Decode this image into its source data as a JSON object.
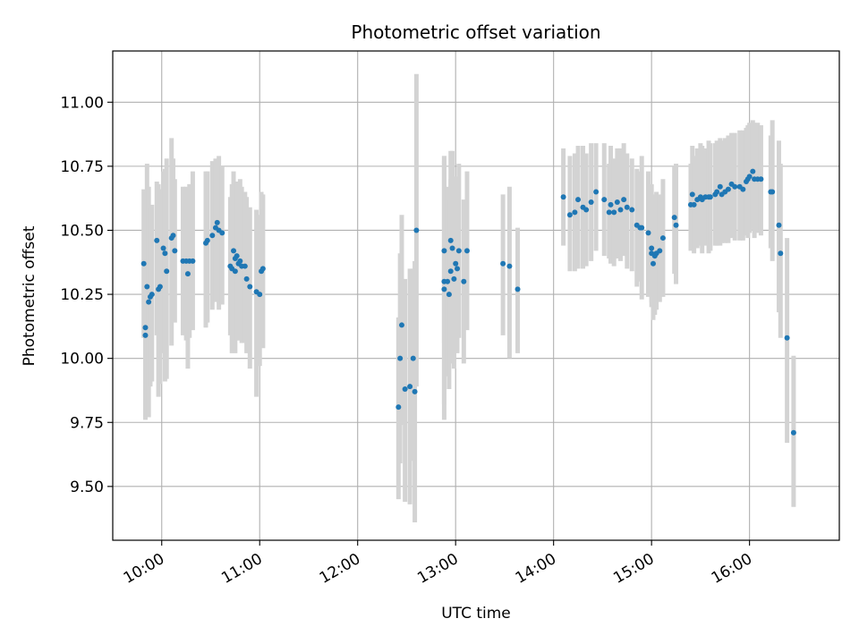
{
  "chart_data": {
    "type": "scatter",
    "title": "Photometric offset variation",
    "xlabel": "UTC time",
    "ylabel": "Photometric offset",
    "xlim": [
      "09:30",
      "16:55"
    ],
    "ylim": [
      9.29,
      11.2
    ],
    "x_ticks": [
      "10:00",
      "11:00",
      "12:00",
      "13:00",
      "14:00",
      "15:00",
      "16:00"
    ],
    "y_ticks": [
      "9.50",
      "9.75",
      "10.00",
      "10.25",
      "10.50",
      "10.75",
      "11.00"
    ],
    "grid": true,
    "colors": {
      "points": "#1f77b4",
      "errorbars": "#d3d3d3",
      "grid": "#b0b0b0"
    },
    "series": [
      {
        "points": [
          [
            "09:49",
            10.37,
            10.08,
            10.66
          ],
          [
            "09:50",
            10.12,
            9.83,
            10.41
          ],
          [
            "09:50",
            10.09,
            9.76,
            10.4
          ],
          [
            "09:51",
            10.28,
            9.8,
            10.76
          ],
          [
            "09:52",
            10.22,
            9.77,
            10.67
          ],
          [
            "09:53",
            10.24,
            9.89,
            10.59
          ],
          [
            "09:54",
            10.25,
            9.91,
            10.6
          ],
          [
            "09:57",
            10.46,
            10.09,
            10.69
          ],
          [
            "09:58",
            10.27,
            9.85,
            10.68
          ],
          [
            "09:59",
            10.28,
            9.9,
            10.66
          ],
          [
            "10:01",
            10.43,
            10.02,
            10.73
          ],
          [
            "10:02",
            10.41,
            9.91,
            10.74
          ],
          [
            "10:03",
            10.34,
            9.92,
            10.78
          ],
          [
            "10:06",
            10.47,
            10.05,
            10.86
          ],
          [
            "10:07",
            10.48,
            10.18,
            10.78
          ],
          [
            "10:08",
            10.42,
            10.14,
            10.7
          ],
          [
            "10:13",
            10.38,
            10.09,
            10.67
          ],
          [
            "10:15",
            10.38,
            10.07,
            10.67
          ],
          [
            "10:16",
            10.33,
            9.96,
            10.66
          ],
          [
            "10:17",
            10.38,
            10.08,
            10.68
          ],
          [
            "10:19",
            10.38,
            10.11,
            10.73
          ],
          [
            "10:27",
            10.45,
            10.12,
            10.73
          ],
          [
            "10:28",
            10.46,
            10.14,
            10.73
          ],
          [
            "10:31",
            10.48,
            10.19,
            10.77
          ],
          [
            "10:33",
            10.51,
            10.22,
            10.78
          ],
          [
            "10:34",
            10.53,
            10.23,
            10.76
          ],
          [
            "10:35",
            10.5,
            10.19,
            10.79
          ],
          [
            "10:37",
            10.49,
            10.21,
            10.75
          ],
          [
            "10:42",
            10.36,
            10.09,
            10.63
          ],
          [
            "10:43",
            10.35,
            10.02,
            10.68
          ],
          [
            "10:44",
            10.42,
            10.11,
            10.73
          ],
          [
            "10:45",
            10.39,
            10.08,
            10.67
          ],
          [
            "10:45",
            10.34,
            10.02,
            10.66
          ],
          [
            "10:46",
            10.4,
            10.07,
            10.69
          ],
          [
            "10:47",
            10.37,
            10.07,
            10.69
          ],
          [
            "10:48",
            10.38,
            10.11,
            10.7
          ],
          [
            "10:49",
            10.36,
            10.06,
            10.67
          ],
          [
            "10:51",
            10.36,
            10.06,
            10.65
          ],
          [
            "10:52",
            10.31,
            10.02,
            10.63
          ],
          [
            "10:54",
            10.28,
            9.96,
            10.59
          ],
          [
            "10:58",
            10.26,
            9.85,
            10.58
          ],
          [
            "11:00",
            10.25,
            9.97,
            10.56
          ],
          [
            "11:01",
            10.34,
            10.06,
            10.65
          ],
          [
            "11:02",
            10.35,
            10.04,
            10.64
          ],
          [
            "12:25",
            9.81,
            9.45,
            10.16
          ],
          [
            "12:26",
            10.0,
            9.59,
            10.41
          ],
          [
            "12:27",
            10.13,
            9.74,
            10.56
          ],
          [
            "12:29",
            9.88,
            9.44,
            10.31
          ],
          [
            "12:32",
            9.89,
            9.43,
            10.35
          ],
          [
            "12:34",
            10.0,
            9.6,
            10.35
          ],
          [
            "12:35",
            9.87,
            9.36,
            10.38
          ],
          [
            "12:36",
            10.5,
            9.89,
            11.11
          ],
          [
            "12:53",
            10.42,
            10.06,
            10.79
          ],
          [
            "12:53",
            10.3,
            9.82,
            10.79
          ],
          [
            "12:53",
            10.27,
            9.76,
            10.77
          ],
          [
            "12:55",
            10.3,
            9.93,
            10.67
          ],
          [
            "12:56",
            10.25,
            9.88,
            10.62
          ],
          [
            "12:57",
            10.46,
            10.06,
            10.81
          ],
          [
            "12:57",
            10.34,
            9.98,
            10.7
          ],
          [
            "12:58",
            10.43,
            10.05,
            10.81
          ],
          [
            "12:59",
            10.31,
            9.96,
            10.66
          ],
          [
            "13:00",
            10.37,
            10.03,
            10.71
          ],
          [
            "13:01",
            10.35,
            10.02,
            10.68
          ],
          [
            "13:02",
            10.42,
            10.08,
            10.76
          ],
          [
            "13:05",
            10.3,
            9.98,
            10.62
          ],
          [
            "13:07",
            10.42,
            10.11,
            10.73
          ],
          [
            "13:29",
            10.37,
            10.09,
            10.64
          ],
          [
            "13:33",
            10.36,
            10.0,
            10.67
          ],
          [
            "13:38",
            10.27,
            10.02,
            10.51
          ],
          [
            "14:06",
            10.63,
            10.44,
            10.82
          ],
          [
            "14:10",
            10.56,
            10.34,
            10.79
          ],
          [
            "14:13",
            10.57,
            10.34,
            10.8
          ],
          [
            "14:15",
            10.62,
            10.35,
            10.83
          ],
          [
            "14:18",
            10.59,
            10.35,
            10.83
          ],
          [
            "14:20",
            10.58,
            10.36,
            10.8
          ],
          [
            "14:23",
            10.61,
            10.38,
            10.84
          ],
          [
            "14:26",
            10.65,
            10.42,
            10.84
          ],
          [
            "14:31",
            10.62,
            10.4,
            10.84
          ],
          [
            "14:34",
            10.57,
            10.39,
            10.76
          ],
          [
            "14:35",
            10.6,
            10.37,
            10.83
          ],
          [
            "14:37",
            10.57,
            10.36,
            10.78
          ],
          [
            "14:39",
            10.61,
            10.39,
            10.82
          ],
          [
            "14:41",
            10.58,
            10.38,
            10.82
          ],
          [
            "14:43",
            10.62,
            10.4,
            10.84
          ],
          [
            "14:45",
            10.59,
            10.35,
            10.8
          ],
          [
            "14:48",
            10.58,
            10.34,
            10.78
          ],
          [
            "14:51",
            10.52,
            10.28,
            10.74
          ],
          [
            "14:53",
            10.51,
            10.3,
            10.73
          ],
          [
            "14:54",
            10.51,
            10.23,
            10.79
          ],
          [
            "14:58",
            10.49,
            10.24,
            10.73
          ],
          [
            "15:00",
            10.41,
            10.2,
            10.64
          ],
          [
            "15:00",
            10.43,
            10.22,
            10.68
          ],
          [
            "15:01",
            10.37,
            10.15,
            10.6
          ],
          [
            "15:02",
            10.4,
            10.17,
            10.64
          ],
          [
            "15:03",
            10.41,
            10.19,
            10.65
          ],
          [
            "15:05",
            10.42,
            10.22,
            10.64
          ],
          [
            "15:07",
            10.47,
            10.24,
            10.7
          ],
          [
            "15:14",
            10.55,
            10.33,
            10.75
          ],
          [
            "15:15",
            10.52,
            10.29,
            10.76
          ],
          [
            "15:24",
            10.6,
            10.42,
            10.76
          ],
          [
            "15:25",
            10.64,
            10.45,
            10.83
          ],
          [
            "15:26",
            10.6,
            10.41,
            10.79
          ],
          [
            "15:28",
            10.62,
            10.43,
            10.82
          ],
          [
            "15:30",
            10.63,
            10.44,
            10.84
          ],
          [
            "15:31",
            10.62,
            10.41,
            10.83
          ],
          [
            "15:33",
            10.63,
            10.44,
            10.82
          ],
          [
            "15:35",
            10.63,
            10.41,
            10.85
          ],
          [
            "15:36",
            10.63,
            10.42,
            10.84
          ],
          [
            "15:39",
            10.64,
            10.44,
            10.84
          ],
          [
            "15:40",
            10.65,
            10.44,
            10.85
          ],
          [
            "15:42",
            10.67,
            10.44,
            10.86
          ],
          [
            "15:43",
            10.64,
            10.45,
            10.85
          ],
          [
            "15:45",
            10.65,
            10.45,
            10.86
          ],
          [
            "15:47",
            10.66,
            10.45,
            10.87
          ],
          [
            "15:49",
            10.68,
            10.47,
            10.88
          ],
          [
            "15:51",
            10.67,
            10.46,
            10.88
          ],
          [
            "15:54",
            10.67,
            10.46,
            10.89
          ],
          [
            "15:56",
            10.66,
            10.46,
            10.89
          ],
          [
            "15:58",
            10.69,
            10.48,
            10.9
          ],
          [
            "15:59",
            10.7,
            10.47,
            10.91
          ],
          [
            "16:00",
            10.71,
            10.49,
            10.92
          ],
          [
            "16:02",
            10.73,
            10.5,
            10.93
          ],
          [
            "16:03",
            10.7,
            10.47,
            10.92
          ],
          [
            "16:05",
            10.7,
            10.49,
            10.92
          ],
          [
            "16:07",
            10.7,
            10.48,
            10.91
          ],
          [
            "16:13",
            10.65,
            10.43,
            10.87
          ],
          [
            "16:14",
            10.65,
            10.38,
            10.93
          ],
          [
            "16:18",
            10.52,
            10.18,
            10.85
          ],
          [
            "16:19",
            10.41,
            10.08,
            10.76
          ],
          [
            "16:23",
            10.08,
            9.67,
            10.47
          ],
          [
            "16:27",
            9.71,
            9.42,
            10.01
          ]
        ]
      }
    ]
  }
}
